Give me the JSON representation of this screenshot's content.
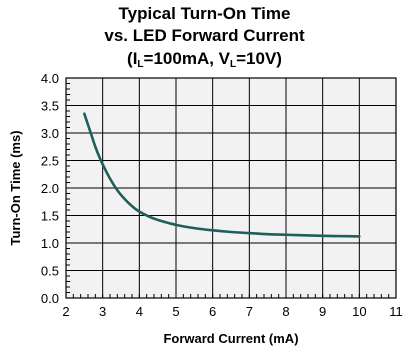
{
  "title": {
    "line1": "Typical Turn-On Time",
    "line2": "vs. LED Forward Current",
    "line3_parts": [
      "(I",
      "L",
      "=100mA, V",
      "L",
      "=10V)"
    ]
  },
  "colors": {
    "curve": "#1f5f5b",
    "grid": "#000000",
    "plot_bg": "#f2f2f2"
  },
  "chart_data": {
    "type": "line",
    "title": "Typical Turn-On Time vs. LED Forward Current (IL=100mA, VL=10V)",
    "xlabel": "Forward Current (mA)",
    "ylabel": "Turn-On Time (ms)",
    "xlim": [
      2,
      11
    ],
    "ylim": [
      0,
      4
    ],
    "xticks": [
      2,
      3,
      4,
      5,
      6,
      7,
      8,
      9,
      10,
      11
    ],
    "yticks": [
      0.0,
      0.5,
      1.0,
      1.5,
      2.0,
      2.5,
      3.0,
      3.5,
      4.0
    ],
    "ytick_labels": [
      "0.0",
      "0.5",
      "1.0",
      "1.5",
      "2.0",
      "2.5",
      "3.0",
      "3.5",
      "4.0"
    ],
    "grid": true,
    "series": [
      {
        "x": [
          2.5,
          2.6,
          2.7,
          2.8,
          2.9,
          3.0,
          3.2,
          3.4,
          3.6,
          3.8,
          4.0,
          4.3,
          4.6,
          5.0,
          5.5,
          6.0,
          6.5,
          7.0,
          7.5,
          8.0,
          8.5,
          9.0,
          9.5,
          10.0
        ],
        "values": [
          3.35,
          3.15,
          2.95,
          2.75,
          2.58,
          2.43,
          2.17,
          1.96,
          1.8,
          1.67,
          1.57,
          1.47,
          1.4,
          1.33,
          1.27,
          1.23,
          1.2,
          1.18,
          1.16,
          1.15,
          1.14,
          1.13,
          1.125,
          1.12
        ]
      }
    ]
  }
}
